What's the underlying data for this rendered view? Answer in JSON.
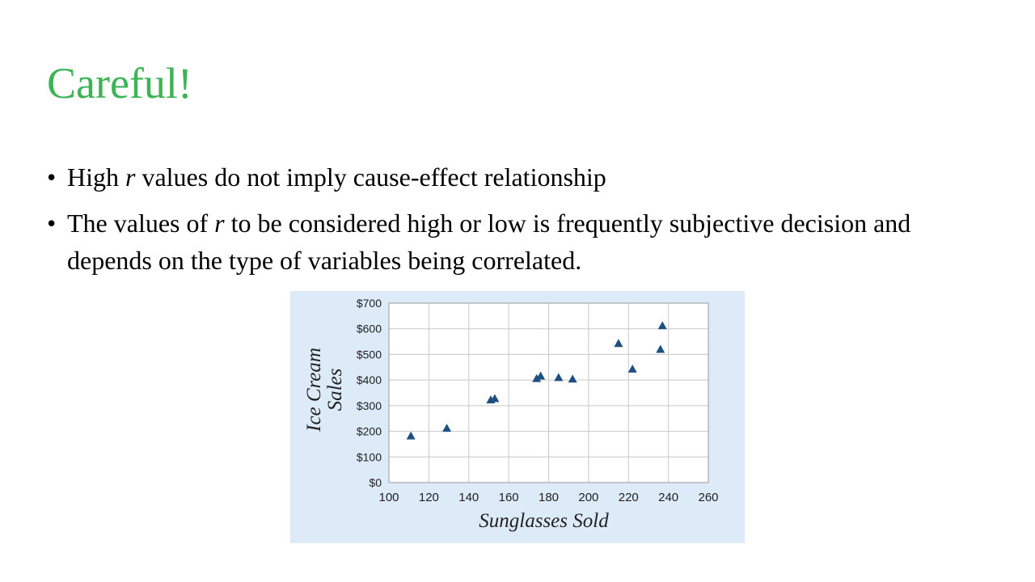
{
  "slide": {
    "title": "Careful!",
    "bullet_char": "•",
    "bullets": [
      {
        "parts": [
          "High ",
          "r",
          " values do not imply cause-effect relationship"
        ]
      },
      {
        "parts": [
          "The values of ",
          "r",
          " to be considered high or low is frequently subjective decision and depends on the type of variables being correlated."
        ]
      }
    ]
  },
  "chart_data": {
    "type": "scatter",
    "xlabel": "Sunglasses Sold",
    "ylabel_lines": [
      "Ice Cream",
      "Sales"
    ],
    "xlim": [
      100,
      260
    ],
    "ylim": [
      0,
      700
    ],
    "x_ticks": [
      100,
      120,
      140,
      160,
      180,
      200,
      220,
      240,
      260
    ],
    "y_ticks": [
      0,
      100,
      200,
      300,
      400,
      500,
      600,
      700
    ],
    "y_tick_labels": [
      "$0",
      "$100",
      "$200",
      "$300",
      "$400",
      "$500",
      "$600",
      "$700"
    ],
    "grid": true,
    "marker": "triangle",
    "colors": {
      "marker": "#1f4e82",
      "background": "#ddeaf8",
      "grid": "#c8c8c8",
      "plot_bg": "#ffffff"
    },
    "points": [
      {
        "x": 111,
        "y": 182
      },
      {
        "x": 129,
        "y": 212
      },
      {
        "x": 151,
        "y": 323
      },
      {
        "x": 153,
        "y": 328
      },
      {
        "x": 174,
        "y": 406
      },
      {
        "x": 176,
        "y": 416
      },
      {
        "x": 185,
        "y": 410
      },
      {
        "x": 192,
        "y": 404
      },
      {
        "x": 215,
        "y": 543
      },
      {
        "x": 222,
        "y": 443
      },
      {
        "x": 236,
        "y": 520
      },
      {
        "x": 237,
        "y": 612
      }
    ]
  }
}
